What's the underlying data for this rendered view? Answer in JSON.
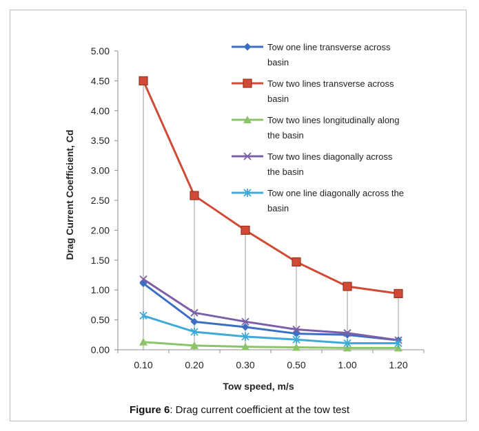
{
  "caption": {
    "label": "Figure 6",
    "text": ": Drag current coefficient at the tow test"
  },
  "chart_data": {
    "type": "line",
    "xlabel": "Tow speed, m/s",
    "ylabel": "Drag Current Coefficient, Cd",
    "categories": [
      "0.10",
      "0.20",
      "0.30",
      "0.50",
      "1.00",
      "1.20"
    ],
    "y_ticks": [
      "0.00",
      "0.50",
      "1.00",
      "1.50",
      "2.00",
      "2.50",
      "3.00",
      "3.50",
      "4.00",
      "4.50",
      "5.00"
    ],
    "ylim": [
      0,
      5
    ],
    "grid": false,
    "drop_lines": true,
    "legend_position": "top-right",
    "series": [
      {
        "name": "Tow one line transverse across basin",
        "name_lines": [
          "Tow one line transverse across",
          "basin"
        ],
        "color": "#3a6fc4",
        "marker": "diamond",
        "values": [
          1.11,
          0.47,
          0.38,
          0.27,
          0.25,
          0.16
        ]
      },
      {
        "name": "Tow two lines transverse across basin",
        "name_lines": [
          "Tow two lines transverse across",
          "basin"
        ],
        "color": "#d04a35",
        "marker": "square",
        "values": [
          4.5,
          2.58,
          2.0,
          1.47,
          1.06,
          0.94
        ]
      },
      {
        "name": "Tow two lines longitudinally along the basin",
        "name_lines": [
          "Tow two lines longitudinally along",
          "the basin"
        ],
        "color": "#8cc46a",
        "marker": "triangle",
        "values": [
          0.13,
          0.07,
          0.05,
          0.04,
          0.03,
          0.03
        ]
      },
      {
        "name": "Tow two lines diagonally across the basin",
        "name_lines": [
          "Tow two lines diagonally across",
          "the basin"
        ],
        "color": "#7b5fa8",
        "marker": "x",
        "values": [
          1.18,
          0.62,
          0.47,
          0.34,
          0.28,
          0.16
        ]
      },
      {
        "name": "Tow one line diagonally across the basin",
        "name_lines": [
          "Tow one line diagonally across the",
          "basin"
        ],
        "color": "#3fa9d9",
        "marker": "star",
        "values": [
          0.57,
          0.3,
          0.22,
          0.17,
          0.11,
          0.11
        ]
      }
    ]
  }
}
